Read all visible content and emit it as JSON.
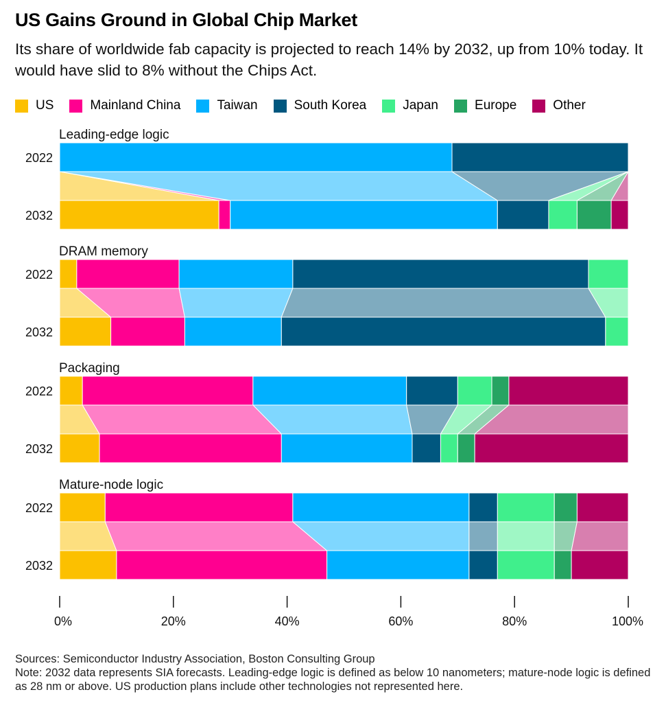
{
  "title": "US Gains Ground in Global Chip Market",
  "subtitle": "Its share of worldwide fab capacity is projected to reach 14% by 2032, up from 10% today. It would have slid to 8% without the Chips Act.",
  "legend": [
    {
      "name": "US",
      "color": "#fcc000"
    },
    {
      "name": "Mainland China",
      "color": "#ff0090"
    },
    {
      "name": "Taiwan",
      "color": "#00b0ff"
    },
    {
      "name": "South Korea",
      "color": "#00577f"
    },
    {
      "name": "Japan",
      "color": "#40ef8c"
    },
    {
      "name": "Europe",
      "color": "#26a462"
    },
    {
      "name": "Other",
      "color": "#b2005f"
    }
  ],
  "chart_data": {
    "type": "bar",
    "orientation": "horizontal",
    "stacked": true,
    "unit": "percent of worldwide fab capacity",
    "series_names": [
      "US",
      "Mainland China",
      "Taiwan",
      "South Korea",
      "Japan",
      "Europe",
      "Other"
    ],
    "xlim": [
      0,
      100
    ],
    "xticks": [
      "0%",
      "20%",
      "40%",
      "60%",
      "80%",
      "100%"
    ],
    "groups": [
      {
        "name": "Leading-edge logic",
        "rows": [
          {
            "year": "2022",
            "values": [
              0,
              0,
              69,
              31,
              0,
              0,
              0
            ]
          },
          {
            "year": "2032",
            "values": [
              28,
              2,
              47,
              9,
              5,
              6,
              3
            ]
          }
        ]
      },
      {
        "name": "DRAM memory",
        "rows": [
          {
            "year": "2022",
            "values": [
              3,
              18,
              20,
              52,
              7,
              0,
              0
            ]
          },
          {
            "year": "2032",
            "values": [
              9,
              13,
              17,
              57,
              4,
              0,
              0
            ]
          }
        ]
      },
      {
        "name": "Packaging",
        "rows": [
          {
            "year": "2022",
            "values": [
              4,
              30,
              27,
              9,
              6,
              3,
              21
            ]
          },
          {
            "year": "2032",
            "values": [
              7,
              32,
              23,
              5,
              3,
              3,
              27
            ]
          }
        ]
      },
      {
        "name": "Mature-node logic",
        "rows": [
          {
            "year": "2022",
            "values": [
              8,
              33,
              31,
              5,
              10,
              4,
              9
            ]
          },
          {
            "year": "2032",
            "values": [
              10,
              37,
              25,
              5,
              10,
              3,
              10
            ]
          }
        ]
      }
    ]
  },
  "footer": {
    "sources": "Sources: Semiconductor Industry Association, Boston Consulting Group",
    "note": "Note: 2032 data represents SIA forecasts. Leading-edge logic is defined as below 10 nanometers; mature-node logic is defined as 28 nm or above. US production plans include other technologies not represented here."
  }
}
